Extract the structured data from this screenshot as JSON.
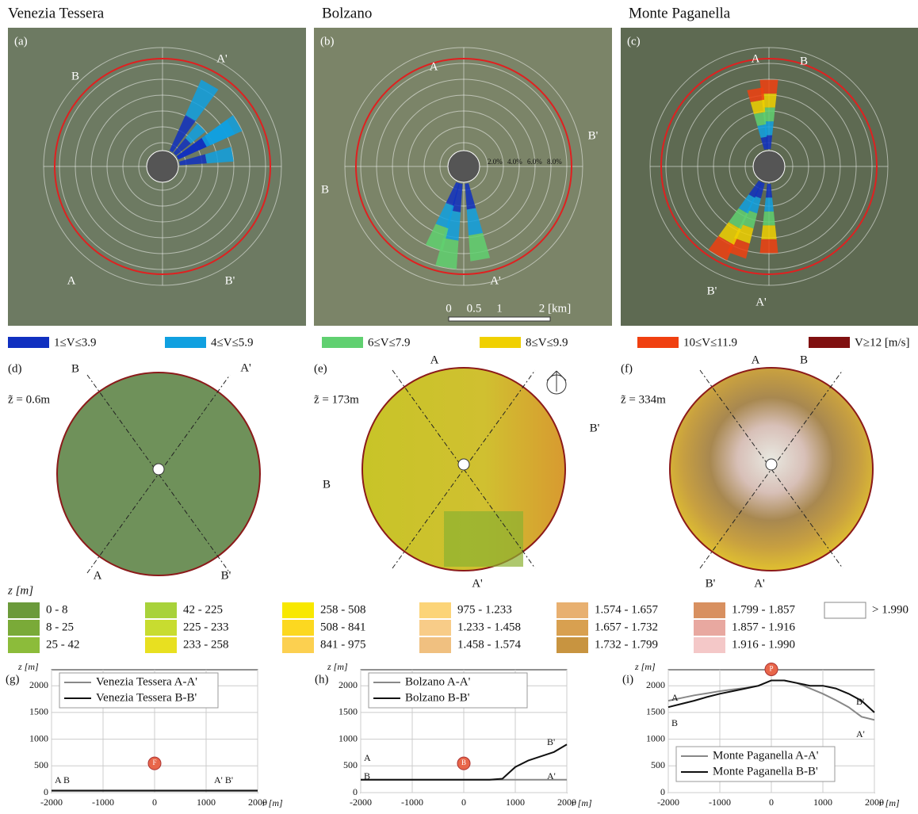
{
  "map_panels": [
    {
      "site": "Venezia Tessera",
      "label": "(a)",
      "sections": [
        "A",
        "A'",
        "B",
        "B'"
      ]
    },
    {
      "site": "Bolzano",
      "label": "(b)",
      "sections": [
        "A",
        "A'",
        "B",
        "B'"
      ],
      "ring_labels": [
        "2.0%",
        "4.0%",
        "6.0%",
        "8.0%"
      ],
      "scale_bar": [
        "0",
        "0.5",
        "1",
        "2 [km]"
      ]
    },
    {
      "site": "Monte Paganella",
      "label": "(c)",
      "sections": [
        "A",
        "A'",
        "B",
        "B'"
      ]
    }
  ],
  "speed_legend": [
    {
      "label": "1≤V≤3.9",
      "color": "#1030c0"
    },
    {
      "label": "4≤V≤5.9",
      "color": "#10a0e0"
    },
    {
      "label": "6≤V≤7.9",
      "color": "#60d070"
    },
    {
      "label": "8≤V≤9.9",
      "color": "#f0d000"
    },
    {
      "label": "10≤V≤11.9",
      "color": "#f04010"
    },
    {
      "label": "V≥12 [m/s]",
      "color": "#801010"
    }
  ],
  "terrain_panels": [
    {
      "label": "(d)",
      "height": "z̃ = 0.6m",
      "sections": [
        "A",
        "A'",
        "B",
        "B'"
      ]
    },
    {
      "label": "(e)",
      "height": "z̃ = 173m",
      "sections": [
        "A",
        "A'",
        "B",
        "B'"
      ]
    },
    {
      "label": "(f)",
      "height": "z̃ = 334m",
      "sections": [
        "A",
        "A'",
        "B",
        "B'"
      ]
    }
  ],
  "z_legend": {
    "title": "z [m]",
    "items": [
      {
        "label": "0 - 8",
        "color": "#6b9a3a"
      },
      {
        "label": "8 - 25",
        "color": "#7aaa38"
      },
      {
        "label": "25 - 42",
        "color": "#8cbc3a"
      },
      {
        "label": "42 - 225",
        "color": "#a8d23a"
      },
      {
        "label": "225 - 233",
        "color": "#c8dc30"
      },
      {
        "label": "233 - 258",
        "color": "#e8e020"
      },
      {
        "label": "258 - 508",
        "color": "#f8e800"
      },
      {
        "label": "508 - 841",
        "color": "#fcd820"
      },
      {
        "label": "841 - 975",
        "color": "#fcd050"
      },
      {
        "label": "975 - 1.233",
        "color": "#fcd478"
      },
      {
        "label": "1.233 - 1.458",
        "color": "#f8cc88"
      },
      {
        "label": "1.458 - 1.574",
        "color": "#f0c080"
      },
      {
        "label": "1.574 - 1.657",
        "color": "#e8b070"
      },
      {
        "label": "1.657 - 1.732",
        "color": "#d8a050"
      },
      {
        "label": "1.732 - 1.799",
        "color": "#c89440"
      },
      {
        "label": "1.799 - 1.857",
        "color": "#d89060"
      },
      {
        "label": "1.857 - 1.916",
        "color": "#e8a8a0"
      },
      {
        "label": "1.916 - 1.990",
        "color": "#f4c8c8"
      },
      {
        "label": "> 1.990",
        "color": "#ffffff"
      }
    ]
  },
  "chart_data": [
    {
      "type": "line",
      "label": "(g)",
      "ylabel": "z [m]",
      "xlabel": "r [m]",
      "marker": "F",
      "x": [
        -2000,
        -1750,
        -1500,
        -1250,
        -1000,
        -750,
        -500,
        -250,
        0,
        250,
        500,
        750,
        1000,
        1250,
        1500,
        1750,
        2000
      ],
      "xlim": [
        -2000,
        2000
      ],
      "xticks": [
        -2000,
        -1000,
        0,
        1000,
        2000
      ],
      "ylim": [
        0,
        2300
      ],
      "yticks": [
        0,
        500,
        1000,
        1500,
        2000
      ],
      "grid": true,
      "legend": "upper left",
      "annotations": [
        "A B",
        "A' B'"
      ],
      "series": [
        {
          "name": "Venezia Tessera A-A'",
          "color": "#888888",
          "values": [
            40,
            40,
            40,
            40,
            40,
            40,
            40,
            40,
            40,
            40,
            40,
            40,
            40,
            40,
            40,
            40,
            40
          ]
        },
        {
          "name": "Venezia Tessera B-B'",
          "color": "#111111",
          "values": [
            35,
            35,
            35,
            35,
            35,
            35,
            35,
            35,
            35,
            35,
            35,
            35,
            35,
            35,
            35,
            35,
            35
          ]
        }
      ]
    },
    {
      "type": "line",
      "label": "(h)",
      "ylabel": "z [m]",
      "xlabel": "r [m]",
      "marker": "B",
      "x": [
        -2000,
        -1750,
        -1500,
        -1250,
        -1000,
        -750,
        -500,
        -250,
        0,
        250,
        500,
        750,
        1000,
        1250,
        1500,
        1750,
        2000
      ],
      "xlim": [
        -2000,
        2000
      ],
      "xticks": [
        -2000,
        -1000,
        0,
        1000,
        2000
      ],
      "ylim": [
        0,
        2300
      ],
      "yticks": [
        0,
        500,
        1000,
        1500,
        2000
      ],
      "grid": true,
      "legend": "upper left",
      "annotations": [
        "A",
        "B",
        "B'",
        "A'"
      ],
      "series": [
        {
          "name": "Bolzano A-A'",
          "color": "#888888",
          "values": [
            240,
            240,
            240,
            240,
            240,
            240,
            240,
            240,
            240,
            240,
            240,
            240,
            240,
            240,
            240,
            240,
            240
          ]
        },
        {
          "name": "Bolzano B-B'",
          "color": "#111111",
          "values": [
            240,
            240,
            240,
            240,
            240,
            240,
            240,
            240,
            240,
            240,
            240,
            260,
            480,
            600,
            680,
            760,
            900
          ]
        }
      ]
    },
    {
      "type": "line",
      "label": "(i)",
      "ylabel": "z [m]",
      "xlabel": "r [m]",
      "marker": "P",
      "x": [
        -2000,
        -1750,
        -1500,
        -1250,
        -1000,
        -750,
        -500,
        -250,
        0,
        250,
        500,
        750,
        1000,
        1250,
        1500,
        1750,
        2000
      ],
      "xlim": [
        -2000,
        2000
      ],
      "xticks": [
        -2000,
        -1000,
        0,
        1000,
        2000
      ],
      "ylim": [
        0,
        2300
      ],
      "yticks": [
        0,
        500,
        1000,
        1500,
        2000
      ],
      "grid": true,
      "legend": "lower left",
      "annotations": [
        "A",
        "B",
        "B'",
        "A'"
      ],
      "series": [
        {
          "name": "Monte Paganella A-A'",
          "color": "#888888",
          "values": [
            1720,
            1770,
            1820,
            1860,
            1900,
            1930,
            1960,
            2000,
            2100,
            2100,
            2050,
            1950,
            1850,
            1730,
            1600,
            1420,
            1360
          ]
        },
        {
          "name": "Monte Paganella B-B'",
          "color": "#111111",
          "values": [
            1600,
            1660,
            1720,
            1790,
            1850,
            1900,
            1950,
            2000,
            2100,
            2100,
            2050,
            2000,
            2000,
            1950,
            1850,
            1720,
            1500
          ]
        }
      ]
    }
  ]
}
